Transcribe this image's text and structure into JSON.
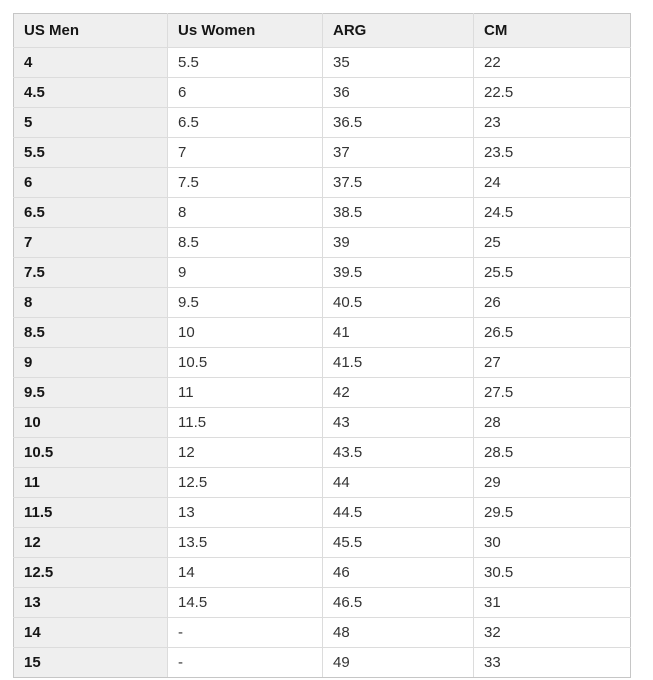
{
  "colors": {
    "border_outer": "#c6c6c6",
    "border_inner": "#dcdcdc",
    "header_bg": "#efefef",
    "firstcol_bg": "#efefef",
    "text_strong": "#161616",
    "text_normal": "#333333",
    "page_bg": "#ffffff"
  },
  "table": {
    "columns": [
      {
        "label": "US Men"
      },
      {
        "label": "Us Women"
      },
      {
        "label": "ARG"
      },
      {
        "label": "CM"
      }
    ],
    "rows": [
      [
        "4",
        "5.5",
        "35",
        "22"
      ],
      [
        "4.5",
        "6",
        "36",
        "22.5"
      ],
      [
        "5",
        "6.5",
        "36.5",
        "23"
      ],
      [
        "5.5",
        "7",
        "37",
        "23.5"
      ],
      [
        "6",
        "7.5",
        "37.5",
        "24"
      ],
      [
        "6.5",
        "8",
        "38.5",
        "24.5"
      ],
      [
        "7",
        "8.5",
        "39",
        "25"
      ],
      [
        "7.5",
        "9",
        "39.5",
        "25.5"
      ],
      [
        "8",
        "9.5",
        "40.5",
        "26"
      ],
      [
        "8.5",
        "10",
        "41",
        "26.5"
      ],
      [
        "9",
        "10.5",
        "41.5",
        "27"
      ],
      [
        "9.5",
        "11",
        "42",
        "27.5"
      ],
      [
        "10",
        "11.5",
        "43",
        "28"
      ],
      [
        "10.5",
        "12",
        "43.5",
        "28.5"
      ],
      [
        "11",
        "12.5",
        "44",
        "29"
      ],
      [
        "11.5",
        "13",
        "44.5",
        "29.5"
      ],
      [
        "12",
        "13.5",
        "45.5",
        "30"
      ],
      [
        "12.5",
        "14",
        "46",
        "30.5"
      ],
      [
        "13",
        "14.5",
        "46.5",
        "31"
      ],
      [
        "14",
        "-",
        "48",
        "32"
      ],
      [
        "15",
        "-",
        "49",
        "33"
      ]
    ]
  }
}
